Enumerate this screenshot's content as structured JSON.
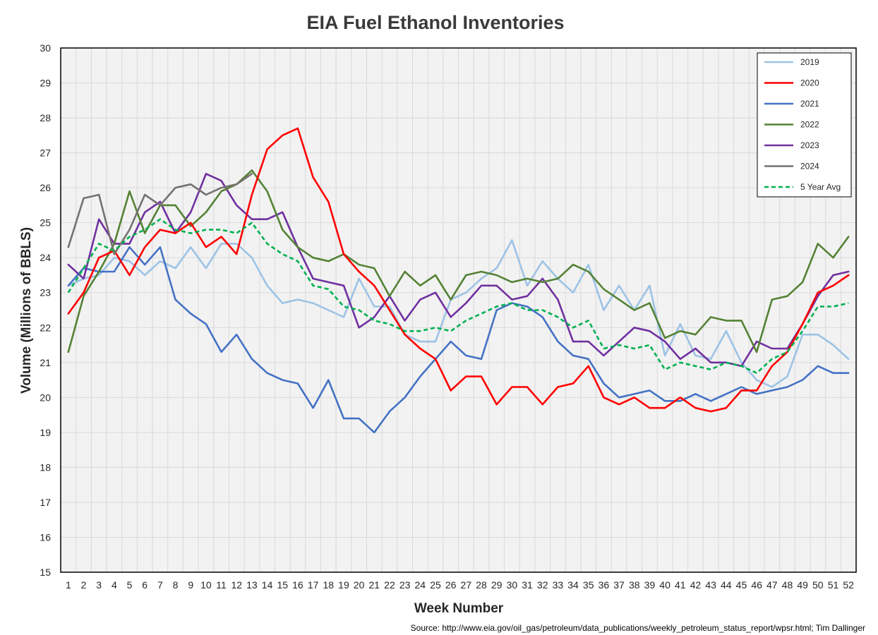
{
  "chart_data": {
    "type": "line",
    "title": "EIA Fuel Ethanol Inventories",
    "xlabel": "Week Number",
    "ylabel": "Volume (Millions of BBLS)",
    "xlim": [
      1,
      52
    ],
    "ylim": [
      15,
      30
    ],
    "yticks": [
      15,
      16,
      17,
      18,
      19,
      20,
      21,
      22,
      23,
      24,
      25,
      26,
      27,
      28,
      29,
      30
    ],
    "x": [
      1,
      2,
      3,
      4,
      5,
      6,
      7,
      8,
      9,
      10,
      11,
      12,
      13,
      14,
      15,
      16,
      17,
      18,
      19,
      20,
      21,
      22,
      23,
      24,
      25,
      26,
      27,
      28,
      29,
      30,
      31,
      32,
      33,
      34,
      35,
      36,
      37,
      38,
      39,
      40,
      41,
      42,
      43,
      44,
      45,
      46,
      47,
      48,
      49,
      50,
      51,
      52
    ],
    "grid": "both",
    "legend_position": "top-right",
    "source": "Source: http://www.eia.gov/oil_gas/petroleum/data_publications/weekly_petroleum_status_report/wpsr.html; Tim Dallinger",
    "series": [
      {
        "name": "2019",
        "color": "#9dc3e6",
        "dash": "solid",
        "values": [
          23.2,
          23.4,
          23.5,
          24.0,
          23.9,
          23.5,
          23.9,
          23.7,
          24.3,
          23.7,
          24.4,
          24.4,
          24.0,
          23.2,
          22.7,
          22.8,
          22.7,
          22.5,
          22.3,
          23.4,
          22.6,
          22.6,
          21.8,
          21.6,
          21.6,
          22.8,
          23.0,
          23.4,
          23.7,
          24.5,
          23.2,
          23.9,
          23.4,
          23.0,
          23.8,
          22.5,
          23.2,
          22.5,
          23.2,
          21.2,
          22.1,
          21.2,
          21.1,
          21.9,
          21.0,
          20.5,
          20.3,
          20.6,
          21.8,
          21.8,
          21.5,
          21.1
        ]
      },
      {
        "name": "2020",
        "color": "#ff0000",
        "dash": "solid",
        "values": [
          22.4,
          23.0,
          24.0,
          24.2,
          23.5,
          24.3,
          24.8,
          24.7,
          25.0,
          24.3,
          24.6,
          24.1,
          25.8,
          27.1,
          27.5,
          27.7,
          26.3,
          25.6,
          24.1,
          23.6,
          23.2,
          22.5,
          21.8,
          21.4,
          21.1,
          20.2,
          20.6,
          20.6,
          19.8,
          20.3,
          20.3,
          19.8,
          20.3,
          20.4,
          20.9,
          20.0,
          19.8,
          20.0,
          19.7,
          19.7,
          20.0,
          19.7,
          19.6,
          19.7,
          20.2,
          20.2,
          20.9,
          21.3,
          22.1,
          23.0,
          23.2,
          23.5
        ]
      },
      {
        "name": "2021",
        "color": "#4472c4",
        "dash": "solid",
        "values": [
          23.2,
          23.7,
          23.6,
          23.6,
          24.3,
          23.8,
          24.3,
          22.8,
          22.4,
          22.1,
          21.3,
          21.8,
          21.1,
          20.7,
          20.5,
          20.4,
          19.7,
          20.5,
          19.4,
          19.4,
          19.0,
          19.6,
          20.0,
          20.6,
          21.1,
          21.6,
          21.2,
          21.1,
          22.5,
          22.7,
          22.6,
          22.3,
          21.6,
          21.2,
          21.1,
          20.4,
          20.0,
          20.1,
          20.2,
          19.9,
          19.9,
          20.1,
          19.9,
          20.1,
          20.3,
          20.1,
          20.2,
          20.3,
          20.5,
          20.9,
          20.7,
          20.7
        ]
      },
      {
        "name": "2022",
        "color": "#548235",
        "dash": "solid",
        "values": [
          21.3,
          22.9,
          23.6,
          24.4,
          25.9,
          24.7,
          25.5,
          25.5,
          24.9,
          25.3,
          25.9,
          26.1,
          26.5,
          25.9,
          24.8,
          24.3,
          24.0,
          23.9,
          24.1,
          23.8,
          23.7,
          22.9,
          23.6,
          23.2,
          23.5,
          22.8,
          23.5,
          23.6,
          23.5,
          23.3,
          23.4,
          23.3,
          23.4,
          23.8,
          23.6,
          23.1,
          22.8,
          22.5,
          22.7,
          21.7,
          21.9,
          21.8,
          22.3,
          22.2,
          22.2,
          21.3,
          22.8,
          22.9,
          23.3,
          24.4,
          24.0,
          24.6
        ]
      },
      {
        "name": "2023",
        "color": "#7030a0",
        "dash": "solid",
        "values": [
          23.8,
          23.4,
          25.1,
          24.4,
          24.4,
          25.3,
          25.6,
          24.7,
          25.3,
          26.4,
          26.2,
          25.5,
          25.1,
          25.1,
          25.3,
          24.3,
          23.4,
          23.3,
          23.2,
          22.0,
          22.3,
          22.9,
          22.2,
          22.8,
          23.0,
          22.3,
          22.7,
          23.2,
          23.2,
          22.8,
          22.9,
          23.4,
          22.8,
          21.6,
          21.6,
          21.2,
          21.6,
          22.0,
          21.9,
          21.6,
          21.1,
          21.4,
          21.0,
          21.0,
          20.9,
          21.6,
          21.4,
          21.4,
          22.1,
          22.9,
          23.5,
          23.6
        ]
      },
      {
        "name": "2024",
        "color": "#767171",
        "dash": "solid",
        "values": [
          24.3,
          25.7,
          25.8,
          24.1,
          24.8,
          25.8,
          25.5,
          26.0,
          26.1,
          25.8,
          26.0,
          26.1,
          26.4,
          null,
          null,
          null,
          null,
          null,
          null,
          null,
          null,
          null,
          null,
          null,
          null,
          null,
          null,
          null,
          null,
          null,
          null,
          null,
          null,
          null,
          null,
          null,
          null,
          null,
          null,
          null,
          null,
          null,
          null,
          null,
          null,
          null,
          null,
          null,
          null,
          null,
          null,
          null
        ]
      },
      {
        "name": "5 Year Avg",
        "color": "#00b050",
        "dash": "dashed",
        "values": [
          23.0,
          23.7,
          24.4,
          24.2,
          24.6,
          24.8,
          25.1,
          24.8,
          24.7,
          24.8,
          24.8,
          24.7,
          25.0,
          24.4,
          24.1,
          23.9,
          23.2,
          23.1,
          22.6,
          22.5,
          22.2,
          22.1,
          21.9,
          21.9,
          22.0,
          21.9,
          22.2,
          22.4,
          22.6,
          22.7,
          22.5,
          22.5,
          22.3,
          22.0,
          22.2,
          21.4,
          21.5,
          21.4,
          21.5,
          20.8,
          21.0,
          20.9,
          20.8,
          21.0,
          20.9,
          20.7,
          21.1,
          21.3,
          21.9,
          22.6,
          22.6,
          22.7
        ]
      }
    ]
  }
}
